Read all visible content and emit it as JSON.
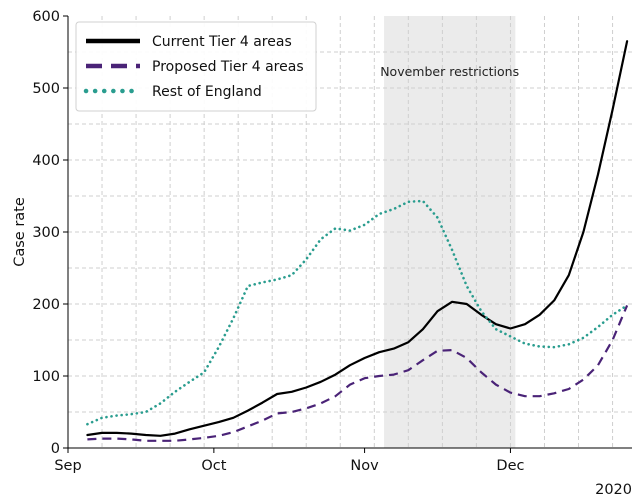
{
  "chart_data": {
    "type": "line",
    "title": "",
    "xlabel": "",
    "ylabel": "Case rate",
    "x_range": [
      "2020-09-01",
      "2020-12-26"
    ],
    "ylim": [
      0,
      600
    ],
    "yticks": [
      0,
      100,
      200,
      300,
      400,
      500,
      600
    ],
    "xticks": [
      {
        "date": "2020-09-01",
        "label": "Sep"
      },
      {
        "date": "2020-10-01",
        "label": "Oct"
      },
      {
        "date": "2020-11-01",
        "label": "Nov"
      },
      {
        "date": "2020-12-01",
        "label": "Dec"
      }
    ],
    "x_offset_label": "2020",
    "grid": true,
    "grid_style": "dashed",
    "legend_position": "top-left",
    "shaded_regions": [
      {
        "start": "2020-11-05",
        "end": "2020-12-02",
        "label": "November restrictions",
        "color": "#ebebeb"
      }
    ],
    "series": [
      {
        "name": "Current Tier 4 areas",
        "color": "#000000",
        "style": "solid",
        "points": [
          [
            "2020-09-05",
            18
          ],
          [
            "2020-09-08",
            21
          ],
          [
            "2020-09-11",
            21
          ],
          [
            "2020-09-14",
            20
          ],
          [
            "2020-09-17",
            18
          ],
          [
            "2020-09-20",
            17
          ],
          [
            "2020-09-23",
            20
          ],
          [
            "2020-09-26",
            26
          ],
          [
            "2020-09-29",
            31
          ],
          [
            "2020-10-02",
            36
          ],
          [
            "2020-10-05",
            42
          ],
          [
            "2020-10-08",
            52
          ],
          [
            "2020-10-11",
            63
          ],
          [
            "2020-10-14",
            75
          ],
          [
            "2020-10-17",
            78
          ],
          [
            "2020-10-20",
            84
          ],
          [
            "2020-10-23",
            92
          ],
          [
            "2020-10-26",
            102
          ],
          [
            "2020-10-29",
            115
          ],
          [
            "2020-11-01",
            125
          ],
          [
            "2020-11-04",
            133
          ],
          [
            "2020-11-07",
            138
          ],
          [
            "2020-11-10",
            147
          ],
          [
            "2020-11-13",
            165
          ],
          [
            "2020-11-16",
            190
          ],
          [
            "2020-11-19",
            203
          ],
          [
            "2020-11-22",
            200
          ],
          [
            "2020-11-25",
            185
          ],
          [
            "2020-11-28",
            172
          ],
          [
            "2020-12-01",
            166
          ],
          [
            "2020-12-04",
            172
          ],
          [
            "2020-12-07",
            185
          ],
          [
            "2020-12-10",
            205
          ],
          [
            "2020-12-13",
            240
          ],
          [
            "2020-12-16",
            300
          ],
          [
            "2020-12-19",
            380
          ],
          [
            "2020-12-22",
            470
          ],
          [
            "2020-12-25",
            565
          ]
        ]
      },
      {
        "name": "Proposed Tier 4 areas",
        "color": "#4a2377",
        "style": "dashed",
        "points": [
          [
            "2020-09-05",
            12
          ],
          [
            "2020-09-08",
            13
          ],
          [
            "2020-09-11",
            13
          ],
          [
            "2020-09-14",
            12
          ],
          [
            "2020-09-17",
            10
          ],
          [
            "2020-09-20",
            10
          ],
          [
            "2020-09-23",
            10
          ],
          [
            "2020-09-26",
            12
          ],
          [
            "2020-09-29",
            14
          ],
          [
            "2020-10-02",
            17
          ],
          [
            "2020-10-05",
            22
          ],
          [
            "2020-10-08",
            30
          ],
          [
            "2020-10-11",
            38
          ],
          [
            "2020-10-14",
            48
          ],
          [
            "2020-10-17",
            50
          ],
          [
            "2020-10-20",
            55
          ],
          [
            "2020-10-23",
            62
          ],
          [
            "2020-10-26",
            72
          ],
          [
            "2020-10-29",
            88
          ],
          [
            "2020-11-01",
            97
          ],
          [
            "2020-11-04",
            100
          ],
          [
            "2020-11-07",
            102
          ],
          [
            "2020-11-10",
            108
          ],
          [
            "2020-11-13",
            122
          ],
          [
            "2020-11-16",
            135
          ],
          [
            "2020-11-19",
            136
          ],
          [
            "2020-11-22",
            125
          ],
          [
            "2020-11-25",
            105
          ],
          [
            "2020-11-28",
            88
          ],
          [
            "2020-12-01",
            77
          ],
          [
            "2020-12-04",
            72
          ],
          [
            "2020-12-07",
            72
          ],
          [
            "2020-12-10",
            76
          ],
          [
            "2020-12-13",
            82
          ],
          [
            "2020-12-16",
            95
          ],
          [
            "2020-12-19",
            115
          ],
          [
            "2020-12-22",
            150
          ],
          [
            "2020-12-25",
            198
          ]
        ]
      },
      {
        "name": "Rest of England",
        "color": "#2a9d8f",
        "style": "dotted",
        "points": [
          [
            "2020-09-05",
            33
          ],
          [
            "2020-09-08",
            42
          ],
          [
            "2020-09-11",
            45
          ],
          [
            "2020-09-14",
            47
          ],
          [
            "2020-09-17",
            50
          ],
          [
            "2020-09-20",
            62
          ],
          [
            "2020-09-23",
            78
          ],
          [
            "2020-09-26",
            92
          ],
          [
            "2020-09-29",
            105
          ],
          [
            "2020-10-02",
            140
          ],
          [
            "2020-10-05",
            180
          ],
          [
            "2020-10-08",
            225
          ],
          [
            "2020-10-11",
            230
          ],
          [
            "2020-10-14",
            234
          ],
          [
            "2020-10-17",
            240
          ],
          [
            "2020-10-20",
            262
          ],
          [
            "2020-10-23",
            290
          ],
          [
            "2020-10-26",
            305
          ],
          [
            "2020-10-29",
            302
          ],
          [
            "2020-11-01",
            310
          ],
          [
            "2020-11-04",
            325
          ],
          [
            "2020-11-07",
            332
          ],
          [
            "2020-11-10",
            342
          ],
          [
            "2020-11-13",
            343
          ],
          [
            "2020-11-16",
            320
          ],
          [
            "2020-11-19",
            275
          ],
          [
            "2020-11-22",
            225
          ],
          [
            "2020-11-25",
            190
          ],
          [
            "2020-11-28",
            165
          ],
          [
            "2020-12-01",
            155
          ],
          [
            "2020-12-04",
            145
          ],
          [
            "2020-12-07",
            141
          ],
          [
            "2020-12-10",
            140
          ],
          [
            "2020-12-13",
            144
          ],
          [
            "2020-12-16",
            153
          ],
          [
            "2020-12-19",
            168
          ],
          [
            "2020-12-22",
            185
          ],
          [
            "2020-12-25",
            198
          ]
        ]
      }
    ]
  }
}
